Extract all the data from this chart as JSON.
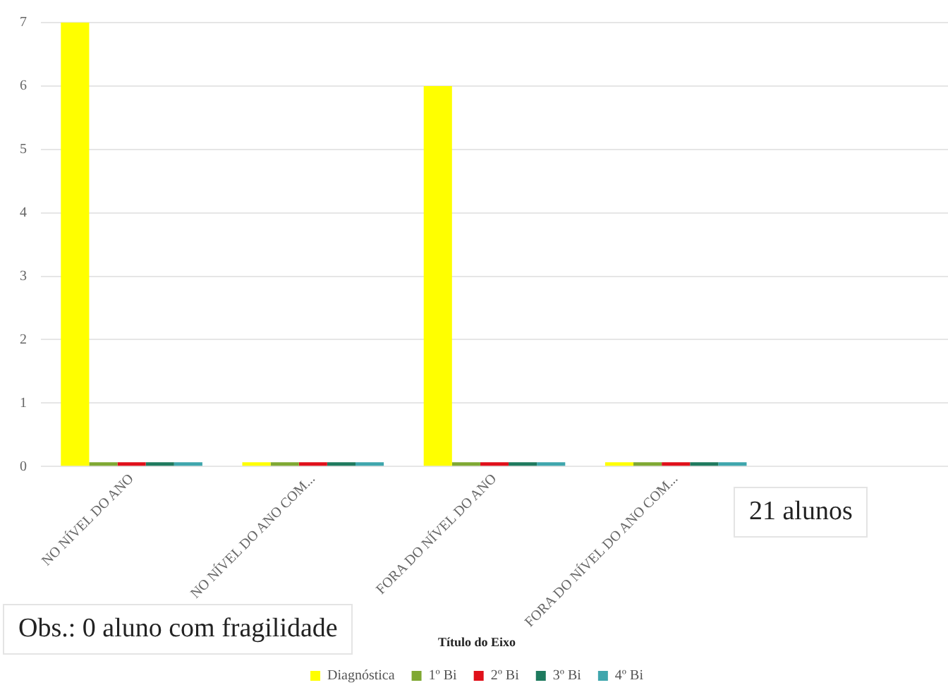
{
  "chart_data": {
    "type": "bar",
    "categories": [
      "NO NÍVEL DO ANO",
      "NO NÍVEL DO ANO COM...",
      "FORA DO NÍVEL DO ANO",
      "FORA DO NÍVEL DO ANO COM...",
      null
    ],
    "series": [
      {
        "name": "Diagnóstica",
        "color": "#ffff00",
        "values": [
          7,
          0,
          6,
          0,
          null
        ]
      },
      {
        "name": "1º Bi",
        "color": "#7fa832",
        "values": [
          0,
          0,
          0,
          0,
          null
        ]
      },
      {
        "name": "2º Bi",
        "color": "#e0101a",
        "values": [
          0,
          0,
          0,
          0,
          null
        ]
      },
      {
        "name": "3º Bi",
        "color": "#1e7a5e",
        "values": [
          0,
          0,
          0,
          0,
          null
        ]
      },
      {
        "name": "4º Bi",
        "color": "#3fa6ad",
        "values": [
          0,
          0,
          0,
          0,
          null
        ]
      }
    ],
    "ylim": [
      0,
      7
    ],
    "yticks": [
      0,
      1,
      2,
      3,
      4,
      5,
      6,
      7
    ],
    "grid": "y",
    "legend": "bottom",
    "legend_title": "Título do Eixo",
    "annotations": [
      "21 alunos",
      "Obs.: 0 aluno com fragilidade"
    ]
  }
}
